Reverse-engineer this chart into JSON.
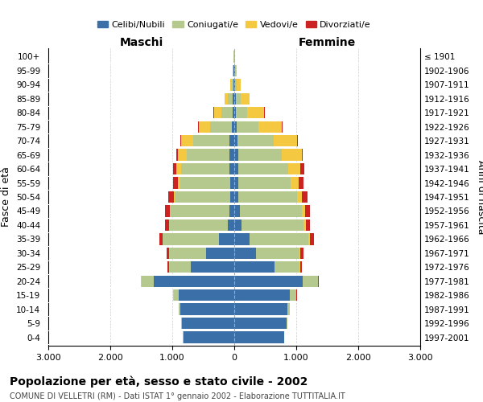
{
  "age_groups": [
    "0-4",
    "5-9",
    "10-14",
    "15-19",
    "20-24",
    "25-29",
    "30-34",
    "35-39",
    "40-44",
    "45-49",
    "50-54",
    "55-59",
    "60-64",
    "65-69",
    "70-74",
    "75-79",
    "80-84",
    "85-89",
    "90-94",
    "95-99",
    "100+"
  ],
  "birth_years": [
    "1997-2001",
    "1992-1996",
    "1987-1991",
    "1982-1986",
    "1977-1981",
    "1972-1976",
    "1967-1971",
    "1962-1966",
    "1957-1961",
    "1952-1956",
    "1947-1951",
    "1942-1946",
    "1937-1941",
    "1932-1936",
    "1927-1931",
    "1922-1926",
    "1917-1921",
    "1912-1916",
    "1907-1911",
    "1902-1906",
    "≤ 1901"
  ],
  "males": {
    "celibe": [
      820,
      850,
      870,
      900,
      1300,
      700,
      450,
      250,
      100,
      80,
      60,
      70,
      80,
      80,
      80,
      40,
      30,
      20,
      10,
      10,
      5
    ],
    "coniugato": [
      5,
      10,
      30,
      80,
      200,
      350,
      600,
      900,
      950,
      950,
      900,
      800,
      780,
      680,
      580,
      350,
      180,
      80,
      30,
      15,
      5
    ],
    "vedovo": [
      0,
      0,
      0,
      2,
      2,
      2,
      2,
      3,
      5,
      10,
      20,
      40,
      80,
      150,
      200,
      180,
      120,
      60,
      20,
      5,
      2
    ],
    "divorziato": [
      0,
      0,
      0,
      5,
      10,
      20,
      40,
      60,
      60,
      80,
      80,
      80,
      50,
      20,
      10,
      10,
      5,
      0,
      0,
      0,
      0
    ]
  },
  "females": {
    "nubile": [
      800,
      840,
      860,
      900,
      1100,
      650,
      350,
      250,
      120,
      90,
      60,
      60,
      65,
      65,
      55,
      35,
      25,
      20,
      10,
      10,
      5
    ],
    "coniugata": [
      5,
      15,
      40,
      100,
      250,
      400,
      700,
      950,
      1000,
      1000,
      950,
      850,
      800,
      700,
      580,
      350,
      180,
      80,
      30,
      15,
      5
    ],
    "vedova": [
      0,
      0,
      2,
      5,
      5,
      10,
      15,
      20,
      30,
      50,
      80,
      130,
      200,
      320,
      380,
      380,
      280,
      150,
      60,
      20,
      5
    ],
    "divorziata": [
      0,
      0,
      0,
      5,
      15,
      30,
      50,
      60,
      70,
      80,
      90,
      80,
      60,
      20,
      10,
      10,
      5,
      0,
      0,
      0,
      0
    ]
  },
  "colors": {
    "celibe": "#3a6fa8",
    "coniugato": "#b5c98e",
    "vedovo": "#f5c842",
    "divorziato": "#cc2222"
  },
  "legend_labels": [
    "Celibi/Nubili",
    "Coniugati/e",
    "Vedovi/e",
    "Divorziati/e"
  ],
  "xlim": 3000,
  "xtick_vals": [
    -3000,
    -2000,
    -1000,
    0,
    1000,
    2000,
    3000
  ],
  "xtick_labels": [
    "3.000",
    "2.000",
    "1.000",
    "0",
    "1.000",
    "2.000",
    "3.000"
  ],
  "title": "Popolazione per età, sesso e stato civile - 2002",
  "subtitle": "COMUNE DI VELLETRI (RM) - Dati ISTAT 1° gennaio 2002 - Elaborazione TUTTITALIA.IT",
  "ylabel_left": "Fasce di età",
  "ylabel_right": "Anni di nascita",
  "label_maschi": "Maschi",
  "label_femmine": "Femmine",
  "bg_color": "#ffffff",
  "grid_color": "#cccccc"
}
